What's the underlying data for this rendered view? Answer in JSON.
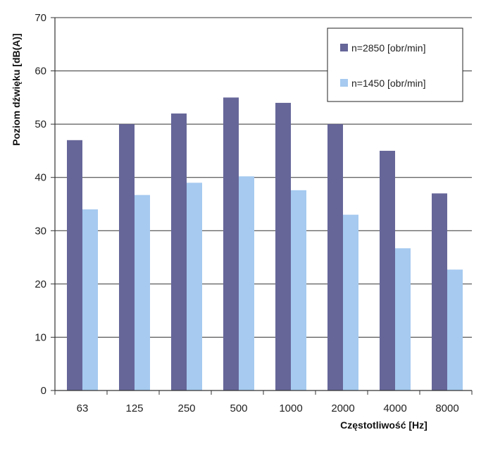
{
  "chart_data": {
    "type": "bar",
    "title": "",
    "xlabel": "Częstotliwość [Hz]",
    "ylabel": "Poziom dźwięku [dB(A)]",
    "ylim": [
      0,
      70
    ],
    "yticks": [
      0,
      10,
      20,
      30,
      40,
      50,
      60,
      70
    ],
    "grid": true,
    "legend_position": "top-right",
    "categories": [
      "63",
      "125",
      "250",
      "500",
      "1000",
      "2000",
      "4000",
      "8000"
    ],
    "series": [
      {
        "name": "n=2850 [obr/min]",
        "color": "#666699",
        "values": [
          47,
          50,
          52,
          55,
          54,
          50,
          45,
          37
        ]
      },
      {
        "name": "n=1450 [obr/min]",
        "color": "#a6caf0",
        "values": [
          34,
          36.7,
          39,
          40.2,
          37.6,
          33,
          26.7,
          22.7
        ]
      }
    ]
  }
}
